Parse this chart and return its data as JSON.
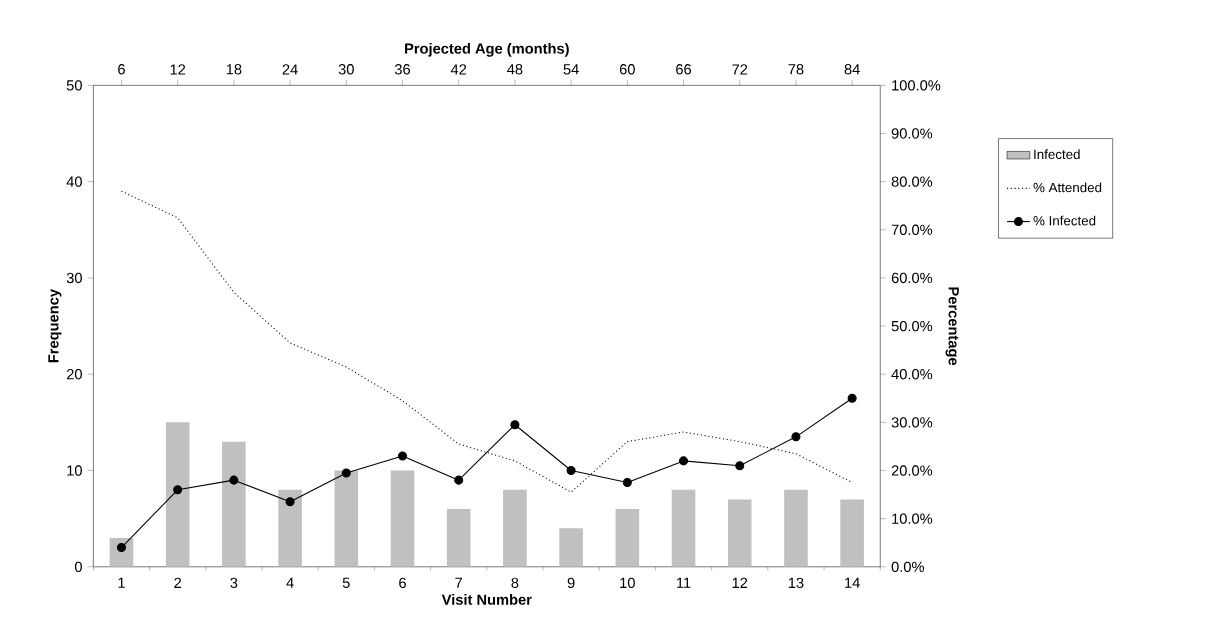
{
  "chart_data": {
    "type": "bar",
    "xlabel": "Visit Number",
    "ylabel": "Frequency",
    "y2label": "Percentage",
    "x2label": "Projected Age (months)",
    "categories": [
      "1",
      "2",
      "3",
      "4",
      "5",
      "6",
      "7",
      "8",
      "9",
      "10",
      "11",
      "12",
      "13",
      "14"
    ],
    "series": [
      {
        "name": "Infected",
        "color": "#c0c0c0",
        "values": [
          3,
          15,
          13,
          8,
          10,
          10,
          6,
          8,
          4,
          6,
          8,
          7,
          8,
          7
        ]
      },
      {
        "name": "% Attended",
        "type": "line",
        "axis": "y2",
        "color": "#000000",
        "marker": "none",
        "line_style": "dotted",
        "values": [
          78,
          72.5,
          57,
          46.5,
          41.5,
          34.5,
          25.5,
          22,
          15.5,
          26,
          28,
          26,
          23.5,
          17.5
        ]
      },
      {
        "name": "% Infected",
        "type": "line",
        "axis": "y2",
        "color": "#000000",
        "marker": "circle",
        "line_style": "solid",
        "values": [
          4,
          16,
          18,
          13.5,
          19.5,
          23,
          18,
          29.5,
          20,
          17.5,
          22,
          21,
          27,
          35
        ]
      }
    ],
    "ylim": [
      0,
      50
    ],
    "yticks": [
      0,
      10,
      20,
      30,
      40,
      50
    ],
    "y2lim": [
      0,
      100
    ],
    "y2ticks": [
      {
        "value": 0,
        "label": "0.0%"
      },
      {
        "value": 10,
        "label": "10.0%"
      },
      {
        "value": 20,
        "label": "20.0%"
      },
      {
        "value": 30,
        "label": "30.0%"
      },
      {
        "value": 40,
        "label": "40.0%"
      },
      {
        "value": 50,
        "label": "50.0%"
      },
      {
        "value": 60,
        "label": "60.0%"
      },
      {
        "value": 70,
        "label": "70.0%"
      },
      {
        "value": 80,
        "label": "80.0%"
      },
      {
        "value": 90,
        "label": "90.0%"
      },
      {
        "value": 100,
        "label": "100.0%"
      }
    ],
    "x2lim": [
      3,
      87
    ],
    "x2ticks": [
      6,
      12,
      18,
      24,
      30,
      36,
      42,
      48,
      54,
      60,
      66,
      72,
      78,
      84
    ],
    "grid": false,
    "legend": "right"
  }
}
